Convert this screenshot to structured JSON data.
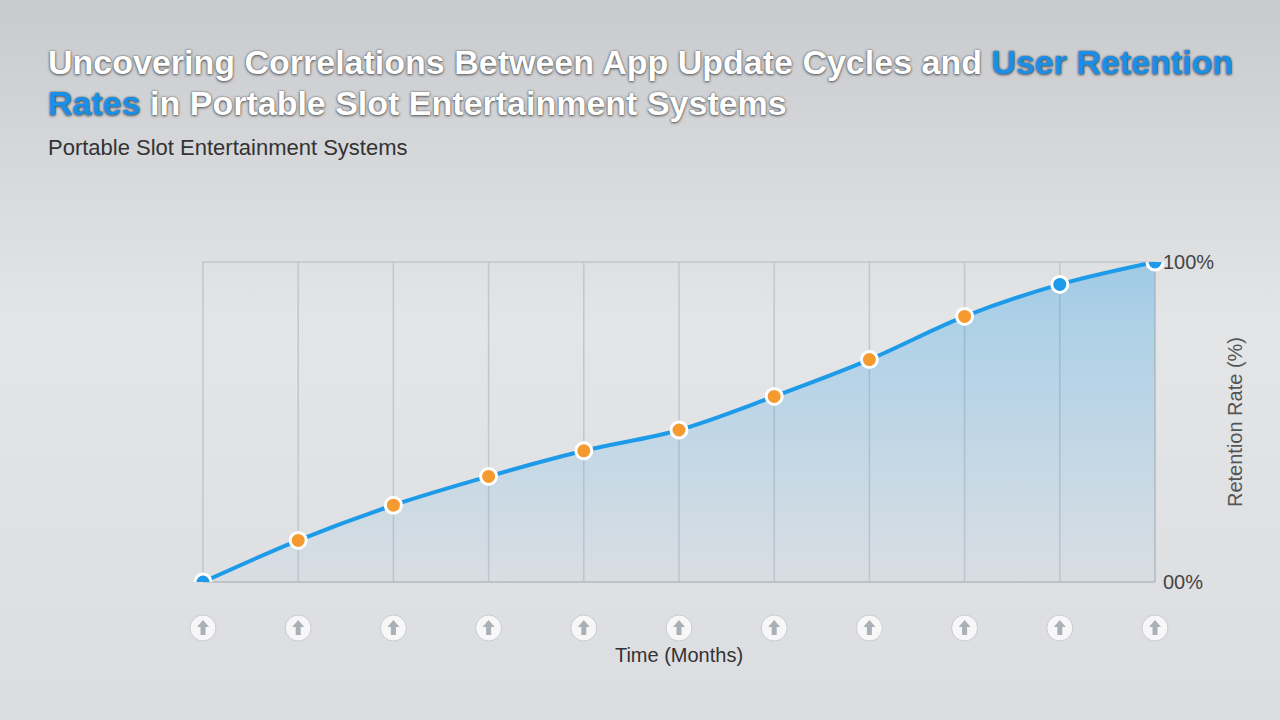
{
  "chart_data": {
    "type": "area",
    "title": "Uncovering Correlations Between App Update Cycles and User Retention Rates in Portable Slot Entertainment Systems",
    "title_highlight": "User Retention Rates",
    "subtitle": "Portable Slot Entertainment Systems",
    "x_label": "Time (Months)",
    "y_label": "Retention Rate (%)",
    "categories": [
      null,
      null,
      null,
      null,
      null,
      null,
      null,
      null,
      null,
      null,
      null
    ],
    "values": [
      0,
      13,
      24,
      33,
      41,
      47.5,
      58,
      69.5,
      83,
      93,
      100
    ],
    "color": "#1e9be8",
    "colors": [
      "#1e9be8",
      "#f59a2e",
      "#f59a2e",
      "#f59a2e",
      "#f59a2e",
      "#f59a2e",
      "#f59a2e",
      "#f59a2e",
      "#f59a2e",
      "#1e9be8",
      "#1e9be8"
    ],
    "marker": "circle",
    "ylim": [
      0,
      100
    ],
    "yticks": [
      {
        "value": 0,
        "label": "00%"
      },
      {
        "value": 100,
        "label": "100%"
      }
    ],
    "grid": true,
    "tick_labels": "y"
  }
}
